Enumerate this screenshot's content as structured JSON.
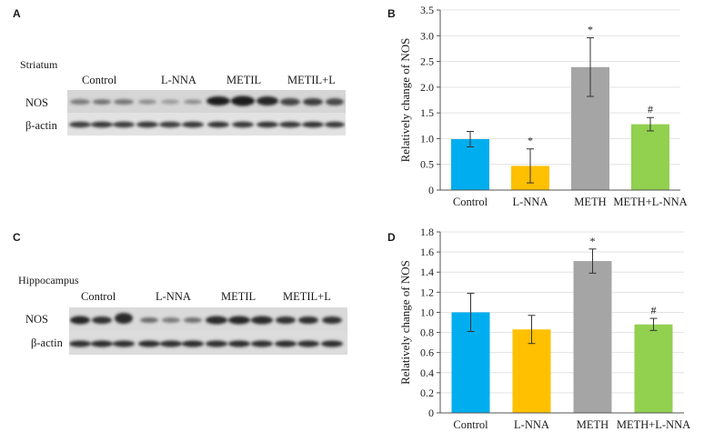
{
  "panels": {
    "A": {
      "letter": "A",
      "tissue": "Striatum",
      "groups": [
        "Control",
        "L-NNA",
        "METIL",
        "METIL+L"
      ],
      "rows": [
        "NOS",
        "β-actin"
      ]
    },
    "C": {
      "letter": "C",
      "tissue": "Hippocampus",
      "groups": [
        "Control",
        "L-NNA",
        "METIL",
        "METIL+L"
      ],
      "rows": [
        "NOS",
        "β-actin"
      ]
    }
  },
  "chart_data": [
    {
      "panel": "B",
      "type": "bar",
      "ylabel": "Relatively change of NOS",
      "ylim": [
        0,
        3.5
      ],
      "yticks": [
        "0",
        "0.5",
        "1.0",
        "1.5",
        "2.0",
        "2.5",
        "3.0",
        "3.5"
      ],
      "categories": [
        "Control",
        "L-NNA",
        "METH",
        "METH+L-NNA"
      ],
      "values": [
        0.99,
        0.47,
        2.39,
        1.28
      ],
      "errors": [
        0.15,
        0.33,
        0.57,
        0.13
      ],
      "markers": [
        "",
        "*",
        "*",
        "#"
      ],
      "colors": [
        "#00AEEF",
        "#FFC000",
        "#A5A5A5",
        "#92D050"
      ],
      "grid": true
    },
    {
      "panel": "D",
      "type": "bar",
      "ylabel": "Relatively change of NOS",
      "ylim": [
        0,
        1.8
      ],
      "yticks": [
        "0",
        "0.2",
        "0.4",
        "0.6",
        "0.8",
        "1.0",
        "1.2",
        "1.4",
        "1.6",
        "1.8"
      ],
      "categories": [
        "Control",
        "L-NNA",
        "METH",
        "METH+L-NNA"
      ],
      "values": [
        1.0,
        0.83,
        1.51,
        0.88
      ],
      "errors": [
        0.19,
        0.14,
        0.12,
        0.06
      ],
      "markers": [
        "",
        "",
        "*",
        "#"
      ],
      "colors": [
        "#00AEEF",
        "#FFC000",
        "#A5A5A5",
        "#92D050"
      ],
      "grid": true
    }
  ]
}
